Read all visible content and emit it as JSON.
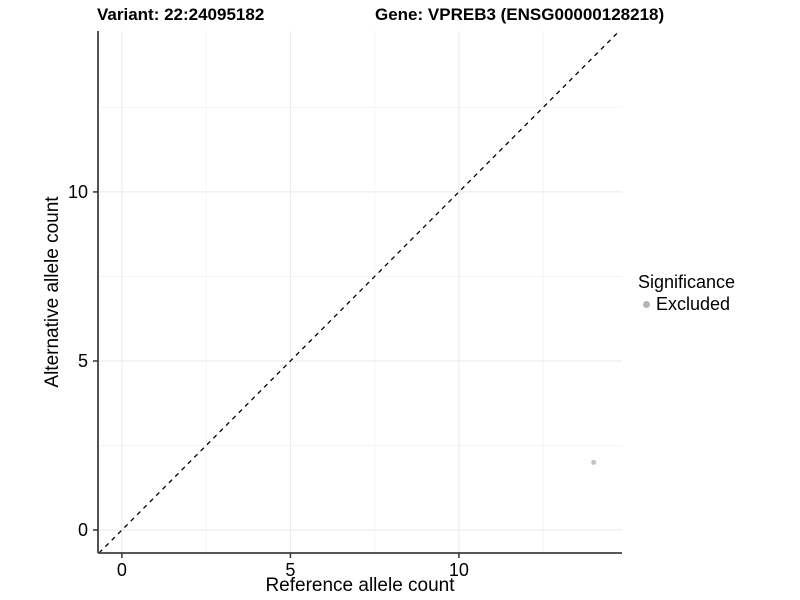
{
  "header": {
    "variant_title": "Variant: 22:24095182",
    "gene_title": "Gene: VPREB3 (ENSG00000128218)"
  },
  "chart_data": {
    "type": "scatter",
    "xlabel": "Reference allele count",
    "ylabel": "Alternative allele count",
    "xlim": [
      -0.71,
      14.84
    ],
    "ylim": [
      -0.68,
      14.76
    ],
    "x_ticks_major": [
      0,
      5,
      10
    ],
    "x_ticks_minor": [
      2.5,
      7.5,
      12.5
    ],
    "y_ticks_major": [
      0,
      5,
      10
    ],
    "y_ticks_minor": [
      2.5,
      7.5,
      12.5
    ],
    "grid": true,
    "identity_line": {
      "style": "dashed",
      "slope": 1,
      "intercept": 0,
      "color": "#000000"
    },
    "series": [
      {
        "name": "Excluded",
        "color": "#c2c2c2",
        "points": [
          {
            "x": 14,
            "y": 2
          }
        ]
      }
    ],
    "legend": {
      "position": "right",
      "title": "Significance",
      "items": [
        {
          "label": "Excluded",
          "color": "#b5b5b5"
        }
      ]
    },
    "colors": {
      "axis_line": "#404040",
      "tick_mark": "#333333",
      "grid_major": "#e9e9e9",
      "grid_minor": "#f4f4f4",
      "background": "#ffffff"
    }
  }
}
